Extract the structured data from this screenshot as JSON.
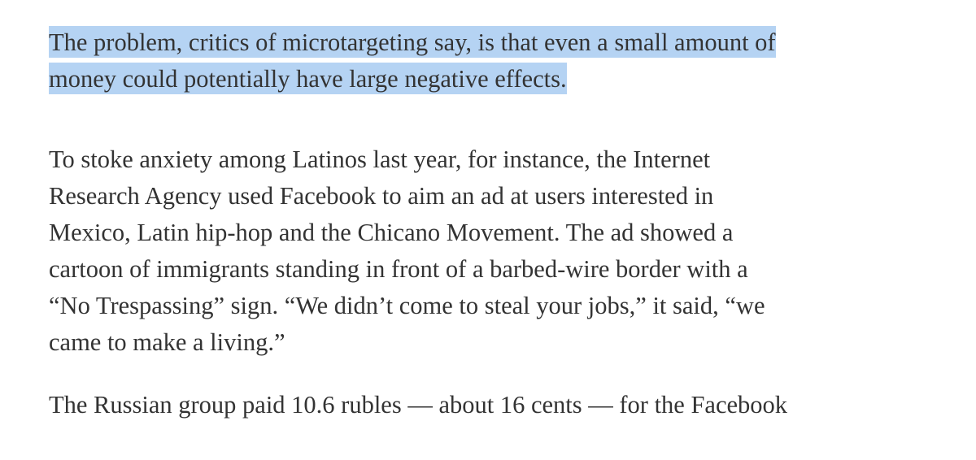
{
  "article": {
    "highlighted_paragraph": {
      "lines": [
        "The problem, critics of microtargeting say, is that even a small amount of",
        "money could potentially have large negative effects."
      ]
    },
    "paragraph_2": {
      "lines": [
        "To stoke anxiety among Latinos last year, for instance, the Internet",
        "Research Agency used Facebook to aim an ad at users interested in",
        "Mexico, Latin hip-hop and the Chicano Movement. The ad showed a",
        "cartoon of immigrants standing in front of a barbed-wire border with a",
        "“No Trespassing” sign. “We didn’t come to steal your jobs,” it said, “we",
        "came to make a living.”"
      ]
    },
    "paragraph_3": {
      "lines": [
        "The Russian group paid 10.6 rubles — about 16 cents — for the Facebook"
      ]
    },
    "colors": {
      "text": "#333333",
      "selection_highlight": "#b5d3f3",
      "background": "#ffffff"
    }
  }
}
